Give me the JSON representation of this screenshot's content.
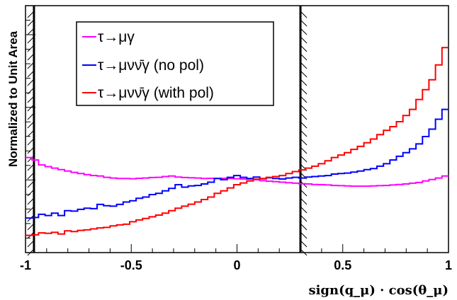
{
  "chart_data": {
    "type": "line",
    "xlabel": "sign(q_μ) · cos(θ_μ)",
    "ylabel": "Normalized to Unit Area",
    "xlim": [
      -1,
      1
    ],
    "ylim": [
      0,
      1
    ],
    "x_ticks": [
      "-1",
      "-0.5",
      "0",
      "0.5",
      "1"
    ],
    "x_tick_values": [
      -1,
      -0.5,
      0,
      0.5,
      1
    ],
    "cut_lines": [
      -0.96,
      0.3
    ],
    "grid": false,
    "legend_position": "top-left",
    "series": [
      {
        "name": "τ→μγ",
        "color": "#ff00ff",
        "values": [
          0.385,
          0.375,
          0.355,
          0.348,
          0.342,
          0.336,
          0.33,
          0.325,
          0.32,
          0.316,
          0.312,
          0.31,
          0.305,
          0.302,
          0.3,
          0.3,
          0.299,
          0.301,
          0.302,
          0.304,
          0.305,
          0.308,
          0.31,
          0.306,
          0.304,
          0.303,
          0.302,
          0.3,
          0.301,
          0.3,
          0.301,
          0.3,
          0.299,
          0.298,
          0.297,
          0.295,
          0.291,
          0.289,
          0.287,
          0.285,
          0.283,
          0.281,
          0.279,
          0.278,
          0.276,
          0.275,
          0.274,
          0.272,
          0.271,
          0.27,
          0.269,
          0.269,
          0.269,
          0.27,
          0.271,
          0.272,
          0.274,
          0.276,
          0.278,
          0.281,
          0.284,
          0.29,
          0.296,
          0.302,
          0.31
        ]
      },
      {
        "name": "τ→μνν̄γ (no pol)",
        "color": "#0000ff",
        "values": [
          0.14,
          0.142,
          0.155,
          0.15,
          0.16,
          0.15,
          0.17,
          0.168,
          0.175,
          0.18,
          0.178,
          0.195,
          0.19,
          0.188,
          0.195,
          0.205,
          0.21,
          0.22,
          0.225,
          0.235,
          0.24,
          0.25,
          0.26,
          0.275,
          0.265,
          0.27,
          0.272,
          0.278,
          0.285,
          0.3,
          0.295,
          0.305,
          0.312,
          0.305,
          0.3,
          0.306,
          0.299,
          0.303,
          0.3,
          0.298,
          0.302,
          0.305,
          0.302,
          0.306,
          0.308,
          0.31,
          0.312,
          0.318,
          0.32,
          0.322,
          0.326,
          0.33,
          0.336,
          0.34,
          0.35,
          0.36,
          0.375,
          0.39,
          0.405,
          0.42,
          0.44,
          0.47,
          0.5,
          0.54,
          0.58
        ]
      },
      {
        "name": "τ→μνν̄γ (with pol)",
        "color": "#ff0000",
        "values": [
          0.07,
          0.072,
          0.08,
          0.078,
          0.082,
          0.075,
          0.088,
          0.085,
          0.09,
          0.092,
          0.096,
          0.1,
          0.102,
          0.108,
          0.112,
          0.115,
          0.125,
          0.132,
          0.138,
          0.145,
          0.152,
          0.16,
          0.17,
          0.18,
          0.188,
          0.196,
          0.205,
          0.215,
          0.225,
          0.24,
          0.25,
          0.262,
          0.275,
          0.282,
          0.29,
          0.297,
          0.3,
          0.305,
          0.308,
          0.312,
          0.32,
          0.328,
          0.335,
          0.342,
          0.35,
          0.36,
          0.372,
          0.385,
          0.395,
          0.405,
          0.418,
          0.43,
          0.445,
          0.46,
          0.478,
          0.495,
          0.51,
          0.53,
          0.555,
          0.58,
          0.62,
          0.66,
          0.7,
          0.76,
          0.83
        ]
      }
    ]
  }
}
